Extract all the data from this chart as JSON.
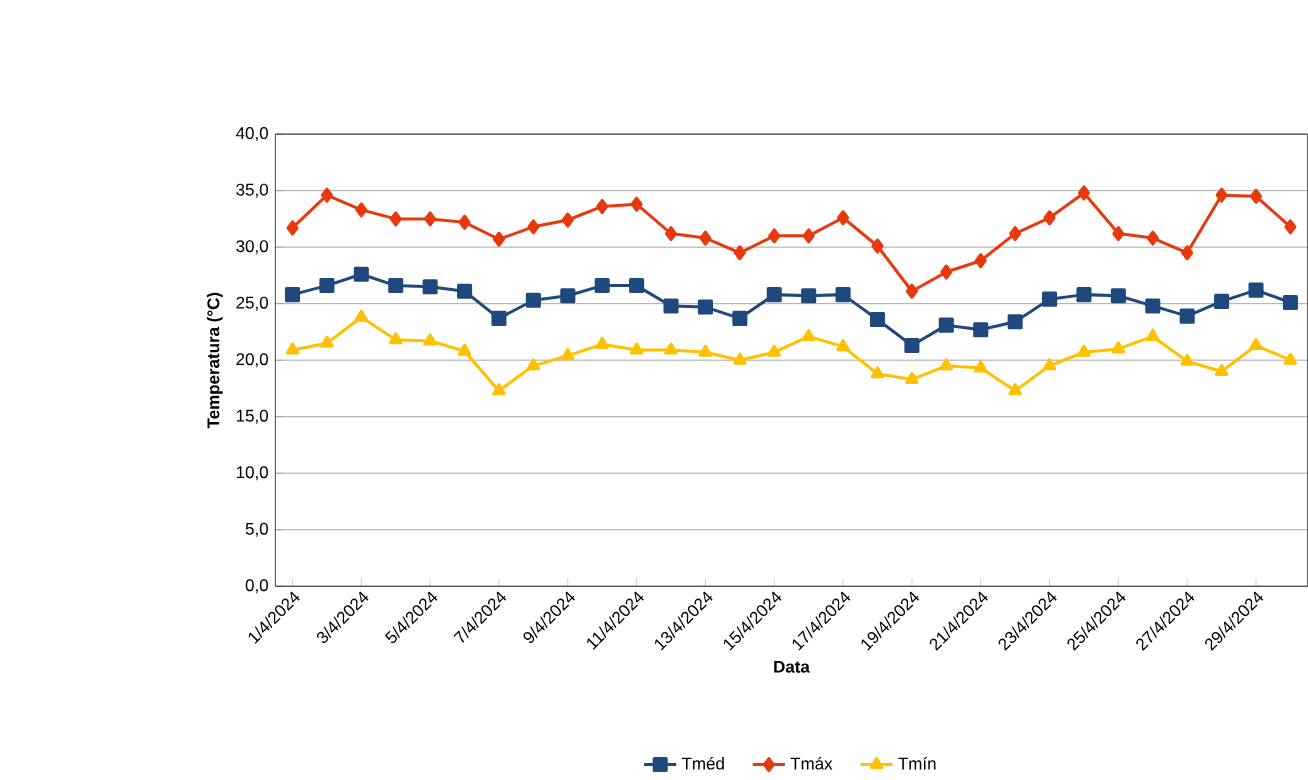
{
  "chart_data": {
    "type": "line",
    "xlabel": "Data",
    "ylabel": "Temperatura (°C)",
    "categories": [
      "1/4/2024",
      null,
      "3/4/2024",
      null,
      "5/4/2024",
      null,
      "7/4/2024",
      null,
      "9/4/2024",
      null,
      "11/4/2024",
      null,
      "13/4/2024",
      null,
      "15/4/2024",
      null,
      "17/4/2024",
      null,
      "19/4/2024",
      null,
      "21/4/2024",
      null,
      "23/4/2024",
      null,
      "25/4/2024",
      null,
      "27/4/2024",
      null,
      "29/4/2024",
      null
    ],
    "series": [
      {
        "name": "Tméd",
        "color": "#1f497d",
        "marker": "square",
        "values": [
          25.8,
          26.6,
          27.6,
          26.6,
          26.5,
          26.1,
          23.7,
          25.3,
          25.7,
          26.6,
          26.6,
          24.8,
          24.7,
          23.7,
          25.8,
          25.7,
          25.8,
          23.6,
          21.3,
          23.1,
          22.7,
          23.4,
          25.4,
          25.8,
          25.7,
          24.8,
          23.9,
          25.2,
          26.2,
          25.1
        ]
      },
      {
        "name": "Tmáx",
        "color": "#e8380d",
        "marker": "diamond",
        "values": [
          31.7,
          34.6,
          33.3,
          32.5,
          32.5,
          32.2,
          30.7,
          31.8,
          32.4,
          33.6,
          33.8,
          31.2,
          30.8,
          29.5,
          31.0,
          31.0,
          32.6,
          30.1,
          26.1,
          27.8,
          28.8,
          31.2,
          32.6,
          34.8,
          31.2,
          30.8,
          29.5,
          34.6,
          34.5,
          31.8
        ]
      },
      {
        "name": "Tmín",
        "color": "#ffc000",
        "marker": "triangle",
        "values": [
          20.9,
          21.5,
          23.8,
          21.8,
          21.7,
          20.8,
          17.3,
          19.5,
          20.4,
          21.4,
          20.9,
          20.9,
          20.7,
          20.0,
          20.7,
          22.1,
          21.2,
          18.8,
          18.3,
          19.5,
          19.3,
          17.3,
          19.5,
          20.7,
          21.0,
          22.1,
          19.9,
          19.0,
          21.3,
          20.0
        ]
      }
    ],
    "ylim": [
      0,
      40
    ],
    "yticks": [
      {
        "value": 0,
        "label": "0,0"
      },
      {
        "value": 5,
        "label": "5,0"
      },
      {
        "value": 10,
        "label": "10,0"
      },
      {
        "value": 15,
        "label": "15,0"
      },
      {
        "value": 20,
        "label": "20,0"
      },
      {
        "value": 25,
        "label": "25,0"
      },
      {
        "value": 30,
        "label": "30,0"
      },
      {
        "value": 35,
        "label": "35,0"
      },
      {
        "value": 40,
        "label": "40,0"
      }
    ],
    "grid": "y",
    "legend": "bottom",
    "line_style": "solid"
  }
}
